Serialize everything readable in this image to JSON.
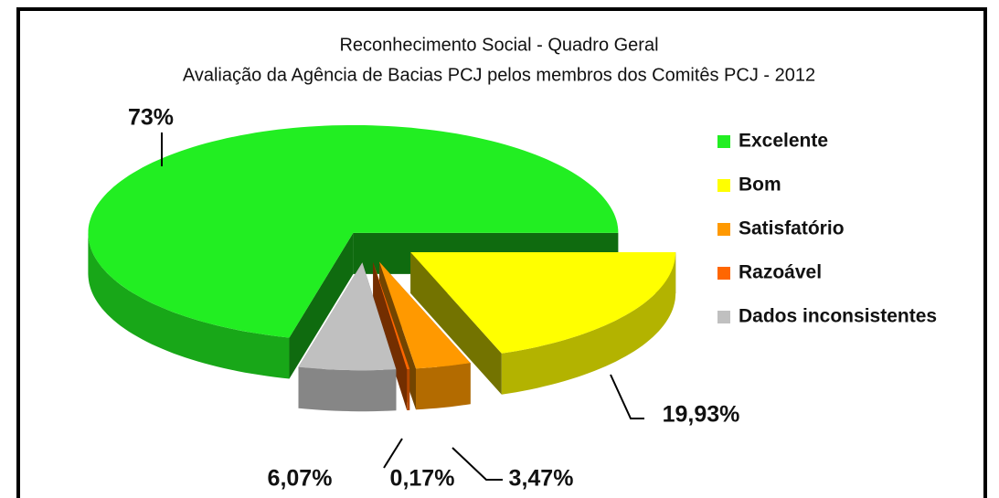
{
  "chart_data": {
    "type": "pie",
    "title": "Reconhecimento Social - Quadro Geral",
    "subtitle": "Avaliação da Agência de Bacias PCJ pelos membros dos Comitês PCJ - 2012",
    "categories": [
      "Excelente",
      "Bom",
      "Satisfatório",
      "Razoável",
      "Dados inconsistentes"
    ],
    "values": [
      73,
      19.93,
      3.47,
      0.17,
      6.07
    ],
    "value_labels": [
      "73%",
      "19,93%",
      "3,47%",
      "0,17%",
      "6,07%"
    ],
    "colors": [
      "#22ee22",
      "#ffff00",
      "#ff9900",
      "#ff6600",
      "#c0c0c0"
    ],
    "legend": "right"
  }
}
